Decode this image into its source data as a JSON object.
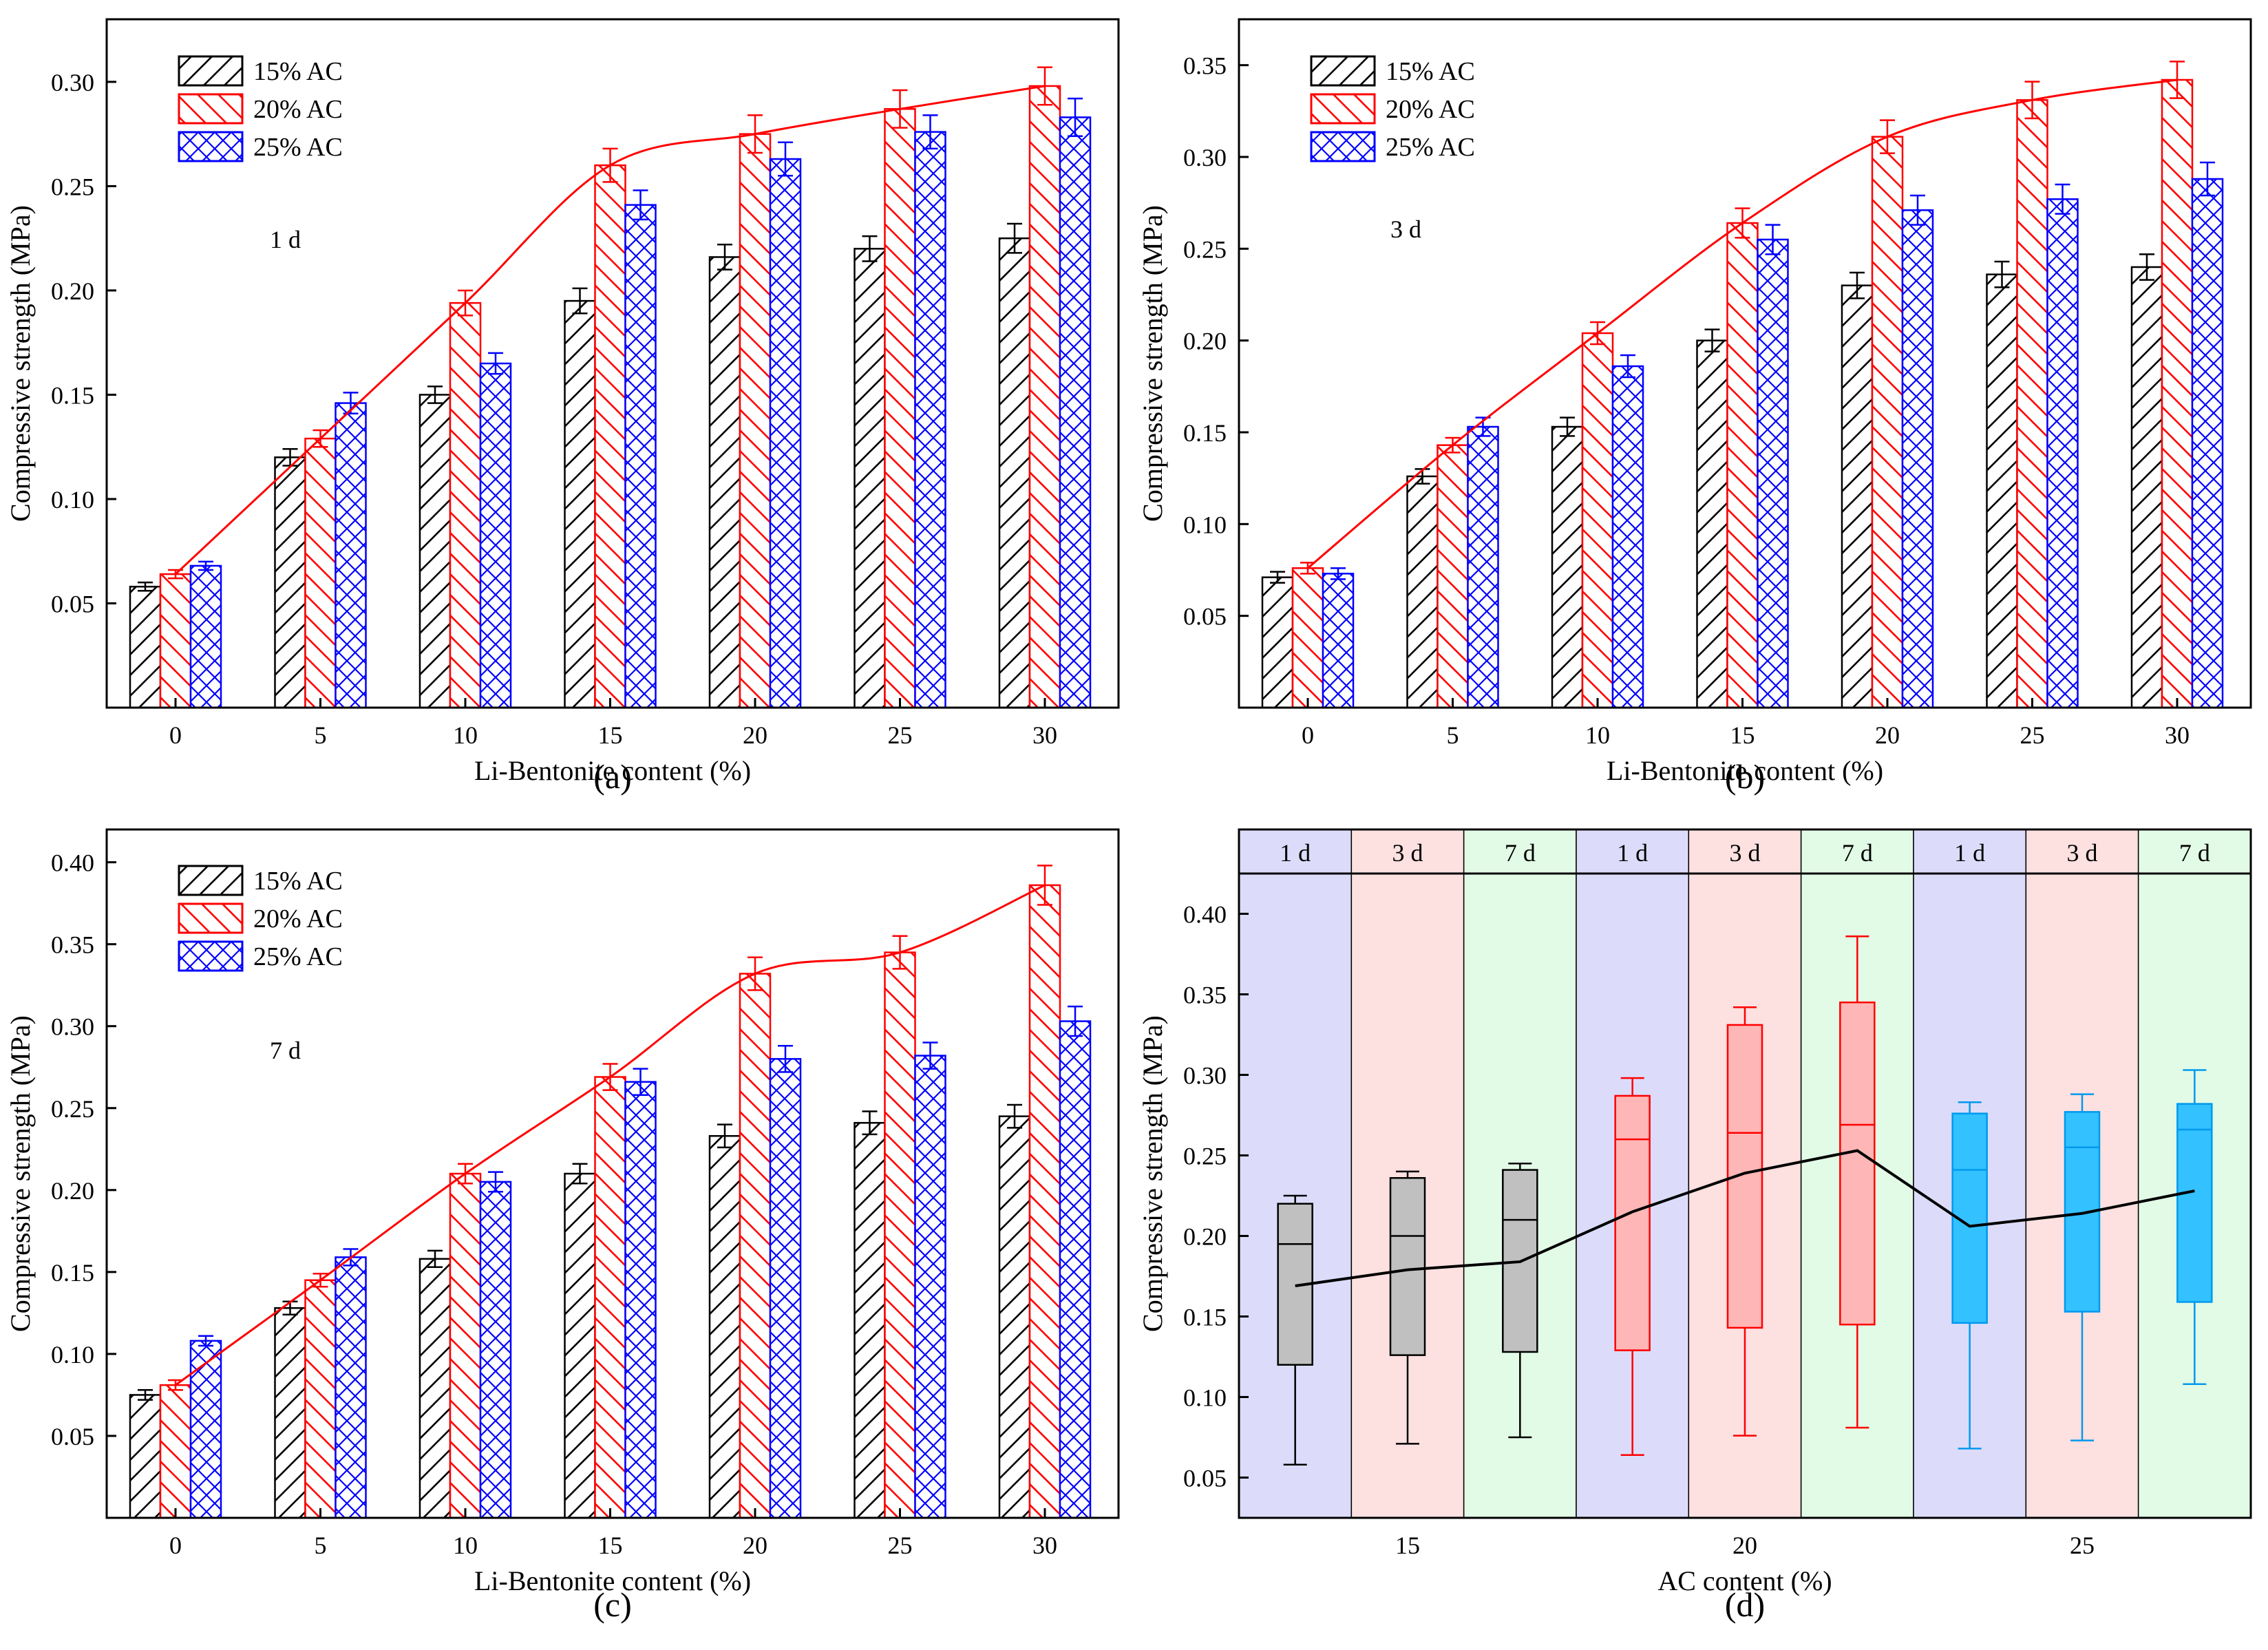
{
  "colors": {
    "ac15": "#000000",
    "ac20": "#ff0000",
    "ac25": "#0000ff",
    "d_line": "#000000",
    "box15_fill": "#c0c0c0",
    "box15_stroke": "#000000",
    "box20_fill": "#ffb6b6",
    "box20_stroke": "#ff0000",
    "box25_fill": "#33c1ff",
    "box25_stroke": "#0099ee",
    "band_1d": "#dcdcfa",
    "band_3d": "#fde0e0",
    "band_7d": "#e2fbe6"
  },
  "chart_data": [
    {
      "type": "bar",
      "panel_label": "(a)",
      "annotation": "1 d",
      "xlabel": "Li-Bentonite content (%)",
      "ylabel": "Compressive strength (MPa)",
      "ylim": [
        0.0,
        0.33
      ],
      "yticks": [
        "0.05",
        "0.10",
        "0.15",
        "0.20",
        "0.25",
        "0.30"
      ],
      "categories": [
        "0",
        "5",
        "10",
        "15",
        "20",
        "25",
        "30"
      ],
      "legend": [
        "15% AC",
        "20% AC",
        "25% AC"
      ],
      "series": [
        {
          "name": "15% AC",
          "values": [
            0.058,
            0.12,
            0.15,
            0.195,
            0.216,
            0.22,
            0.225
          ],
          "errors": [
            0.002,
            0.004,
            0.004,
            0.006,
            0.006,
            0.006,
            0.007
          ]
        },
        {
          "name": "20% AC",
          "values": [
            0.064,
            0.129,
            0.194,
            0.26,
            0.275,
            0.287,
            0.298
          ],
          "errors": [
            0.002,
            0.004,
            0.006,
            0.008,
            0.009,
            0.009,
            0.009
          ]
        },
        {
          "name": "25% AC",
          "values": [
            0.068,
            0.146,
            0.165,
            0.241,
            0.263,
            0.276,
            0.283
          ],
          "errors": [
            0.002,
            0.005,
            0.005,
            0.007,
            0.008,
            0.008,
            0.009
          ]
        }
      ],
      "trend_series": "20% AC"
    },
    {
      "type": "bar",
      "panel_label": "(b)",
      "annotation": "3 d",
      "xlabel": "Li-Bentonite content (%)",
      "ylabel": "Compressive strength (MPa)",
      "ylim": [
        0.0,
        0.375
      ],
      "yticks": [
        "0.05",
        "0.10",
        "0.15",
        "0.20",
        "0.25",
        "0.30",
        "0.35"
      ],
      "categories": [
        "0",
        "5",
        "10",
        "15",
        "20",
        "25",
        "30"
      ],
      "legend": [
        "15% AC",
        "20% AC",
        "25% AC"
      ],
      "series": [
        {
          "name": "15% AC",
          "values": [
            0.071,
            0.126,
            0.153,
            0.2,
            0.23,
            0.236,
            0.24
          ],
          "errors": [
            0.003,
            0.004,
            0.005,
            0.006,
            0.007,
            0.007,
            0.007
          ]
        },
        {
          "name": "20% AC",
          "values": [
            0.076,
            0.143,
            0.204,
            0.264,
            0.311,
            0.331,
            0.342
          ],
          "errors": [
            0.003,
            0.004,
            0.006,
            0.008,
            0.009,
            0.01,
            0.01
          ]
        },
        {
          "name": "25% AC",
          "values": [
            0.073,
            0.153,
            0.186,
            0.255,
            0.271,
            0.277,
            0.288
          ],
          "errors": [
            0.003,
            0.005,
            0.006,
            0.008,
            0.008,
            0.008,
            0.009
          ]
        }
      ],
      "trend_series": "20% AC"
    },
    {
      "type": "bar",
      "panel_label": "(c)",
      "annotation": "7 d",
      "xlabel": "Li-Bentonite content (%)",
      "ylabel": "Compressive strength (MPa)",
      "ylim": [
        0.0,
        0.42
      ],
      "yticks": [
        "0.05",
        "0.10",
        "0.15",
        "0.20",
        "0.25",
        "0.30",
        "0.35",
        "0.40"
      ],
      "categories": [
        "0",
        "5",
        "10",
        "15",
        "20",
        "25",
        "30"
      ],
      "legend": [
        "15% AC",
        "20% AC",
        "25% AC"
      ],
      "series": [
        {
          "name": "15% AC",
          "values": [
            0.075,
            0.128,
            0.158,
            0.21,
            0.233,
            0.241,
            0.245
          ],
          "errors": [
            0.003,
            0.004,
            0.005,
            0.006,
            0.007,
            0.007,
            0.007
          ]
        },
        {
          "name": "20% AC",
          "values": [
            0.081,
            0.145,
            0.21,
            0.269,
            0.332,
            0.345,
            0.386
          ],
          "errors": [
            0.003,
            0.004,
            0.006,
            0.008,
            0.01,
            0.01,
            0.012
          ]
        },
        {
          "name": "25% AC",
          "values": [
            0.108,
            0.159,
            0.205,
            0.266,
            0.28,
            0.282,
            0.303
          ],
          "errors": [
            0.003,
            0.005,
            0.006,
            0.008,
            0.008,
            0.008,
            0.009
          ]
        }
      ],
      "trend_series": "20% AC"
    },
    {
      "type": "box",
      "panel_label": "(d)",
      "xlabel": "AC content (%)",
      "ylabel": "Compressive strength (MPa)",
      "ylim": [
        0.025,
        0.425
      ],
      "yticks": [
        "0.05",
        "0.10",
        "0.15",
        "0.20",
        "0.25",
        "0.30",
        "0.35",
        "0.40"
      ],
      "group_labels": [
        "15",
        "20",
        "25"
      ],
      "bands": [
        "1 d",
        "3 d",
        "7 d",
        "1 d",
        "3 d",
        "7 d",
        "1 d",
        "3 d",
        "7 d"
      ],
      "boxes": [
        {
          "group": "15",
          "age": "1 d",
          "min": 0.058,
          "q1": 0.12,
          "median": 0.195,
          "q3": 0.22,
          "max": 0.225,
          "mean": 0.169
        },
        {
          "group": "15",
          "age": "3 d",
          "min": 0.071,
          "q1": 0.126,
          "median": 0.2,
          "q3": 0.236,
          "max": 0.24,
          "mean": 0.179
        },
        {
          "group": "15",
          "age": "7 d",
          "min": 0.075,
          "q1": 0.128,
          "median": 0.21,
          "q3": 0.241,
          "max": 0.245,
          "mean": 0.184
        },
        {
          "group": "20",
          "age": "1 d",
          "min": 0.064,
          "q1": 0.129,
          "median": 0.26,
          "q3": 0.287,
          "max": 0.298,
          "mean": 0.215
        },
        {
          "group": "20",
          "age": "3 d",
          "min": 0.076,
          "q1": 0.143,
          "median": 0.264,
          "q3": 0.331,
          "max": 0.342,
          "mean": 0.239
        },
        {
          "group": "20",
          "age": "7 d",
          "min": 0.081,
          "q1": 0.145,
          "median": 0.269,
          "q3": 0.345,
          "max": 0.386,
          "mean": 0.253
        },
        {
          "group": "25",
          "age": "1 d",
          "min": 0.068,
          "q1": 0.146,
          "median": 0.241,
          "q3": 0.276,
          "max": 0.283,
          "mean": 0.206
        },
        {
          "group": "25",
          "age": "3 d",
          "min": 0.073,
          "q1": 0.153,
          "median": 0.255,
          "q3": 0.277,
          "max": 0.288,
          "mean": 0.214
        },
        {
          "group": "25",
          "age": "7 d",
          "min": 0.108,
          "q1": 0.159,
          "median": 0.266,
          "q3": 0.282,
          "max": 0.303,
          "mean": 0.228
        }
      ]
    }
  ]
}
